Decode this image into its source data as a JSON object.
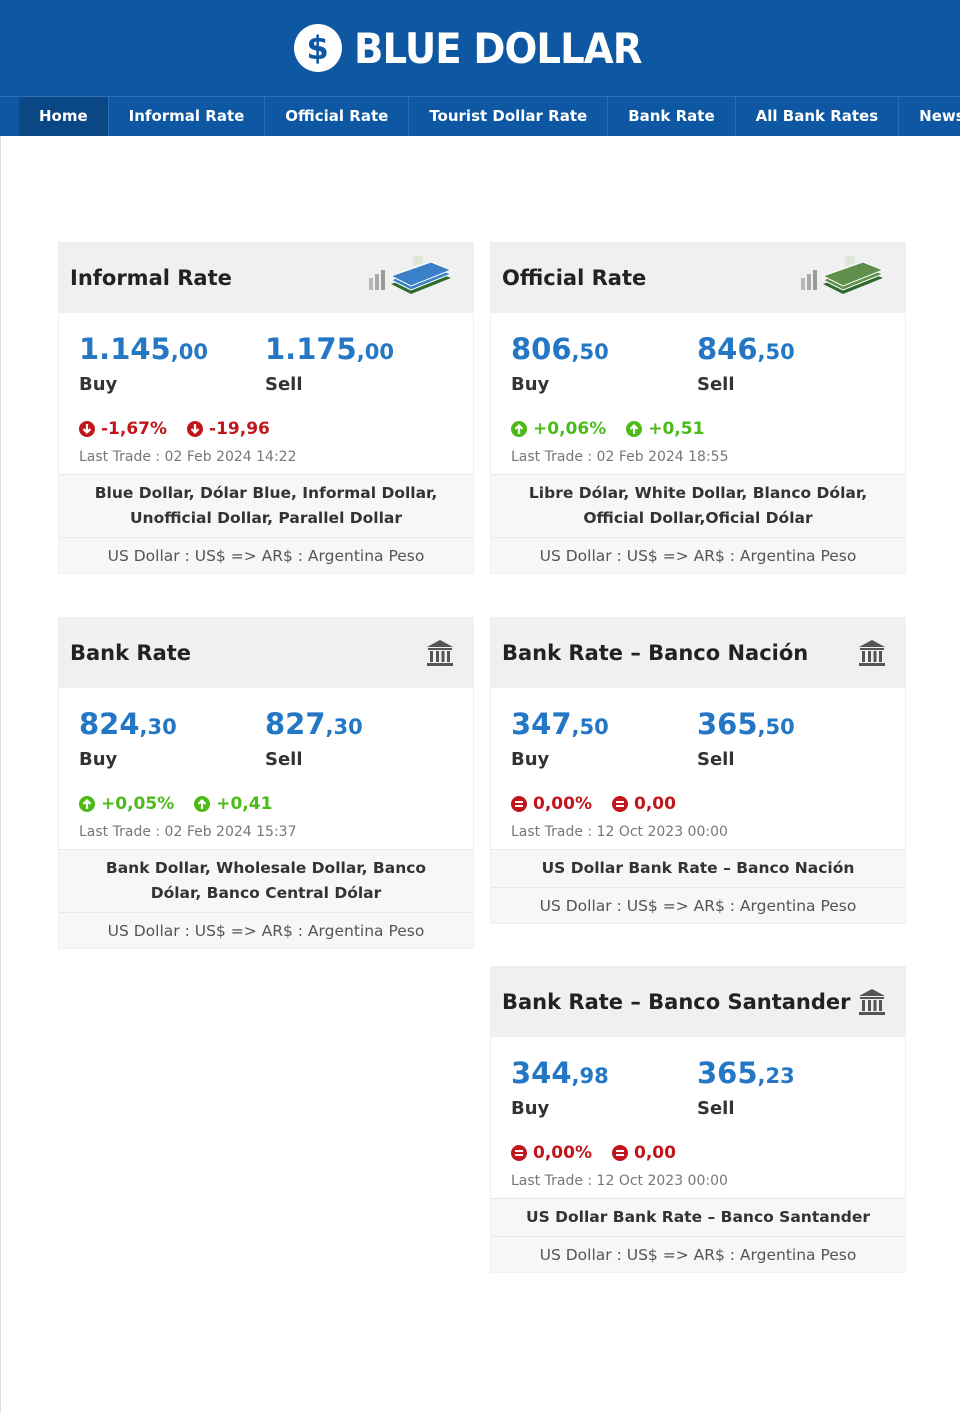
{
  "brand": {
    "name": "BLUE DOLLAR",
    "symbol": "$"
  },
  "nav": [
    {
      "label": "Home",
      "active": true
    },
    {
      "label": "Informal Rate"
    },
    {
      "label": "Official Rate"
    },
    {
      "label": "Tourist Dollar Rate"
    },
    {
      "label": "Bank Rate"
    },
    {
      "label": "All Bank Rates"
    },
    {
      "label": "News"
    }
  ],
  "cards": [
    {
      "title": "Informal Rate",
      "icon": "money-stack-blue-icon",
      "buy_int": "1.145",
      "buy_dec": ",00",
      "buy_label": "Buy",
      "sell_int": "1.175",
      "sell_dec": ",00",
      "sell_label": "Sell",
      "pct": "-1,67%",
      "abs": "-19,96",
      "trend": "down",
      "last_trade": "Last Trade : 02 Feb 2024 14:22",
      "aliases": "Blue Dollar, Dólar Blue, Informal Dollar, Unofficial Dollar, Parallel Dollar",
      "pair": "US Dollar : US$ => AR$ : Argentina Peso"
    },
    {
      "title": "Official Rate",
      "icon": "money-stack-green-icon",
      "buy_int": "806",
      "buy_dec": ",50",
      "buy_label": "Buy",
      "sell_int": "846",
      "sell_dec": ",50",
      "sell_label": "Sell",
      "pct": "+0,06%",
      "abs": "+0,51",
      "trend": "up",
      "last_trade": "Last Trade : 02 Feb 2024 18:55",
      "aliases": "Libre Dólar, White Dollar, Blanco Dólar, Official Dollar,Oficial Dólar",
      "pair": "US Dollar : US$ => AR$ : Argentina Peso"
    },
    {
      "title": "Bank Rate",
      "icon": "bank-icon",
      "buy_int": "824",
      "buy_dec": ",30",
      "buy_label": "Buy",
      "sell_int": "827",
      "sell_dec": ",30",
      "sell_label": "Sell",
      "pct": "+0,05%",
      "abs": "+0,41",
      "trend": "up",
      "last_trade": "Last Trade : 02 Feb 2024 15:37",
      "aliases": "Bank Dollar, Wholesale Dollar, Banco Dólar, Banco Central Dólar",
      "pair": "US Dollar : US$ => AR$ : Argentina Peso"
    },
    {
      "title": "Bank Rate – Banco Nación",
      "icon": "bank-icon",
      "buy_int": "347",
      "buy_dec": ",50",
      "buy_label": "Buy",
      "sell_int": "365",
      "sell_dec": ",50",
      "sell_label": "Sell",
      "pct": "0,00%",
      "abs": "0,00",
      "trend": "flat",
      "last_trade": "Last Trade : 12 Oct 2023 00:00",
      "aliases": "US Dollar Bank Rate – Banco Nación",
      "pair": "US Dollar : US$ => AR$ : Argentina Peso"
    },
    {
      "title": "Bank Rate – Banco Santander",
      "icon": "bank-icon",
      "buy_int": "344",
      "buy_dec": ",98",
      "buy_label": "Buy",
      "sell_int": "365",
      "sell_dec": ",23",
      "sell_label": "Sell",
      "pct": "0,00%",
      "abs": "0,00",
      "trend": "flat",
      "last_trade": "Last Trade : 12 Oct 2023 00:00",
      "aliases": "US Dollar Bank Rate – Banco Santander",
      "pair": "US Dollar : US$ => AR$ : Argentina Peso"
    }
  ],
  "colors": {
    "header": "#0e57a3",
    "nav_active": "#0a4785",
    "rate": "#2477c4",
    "down": "#c0161c",
    "up": "#4cba19"
  }
}
